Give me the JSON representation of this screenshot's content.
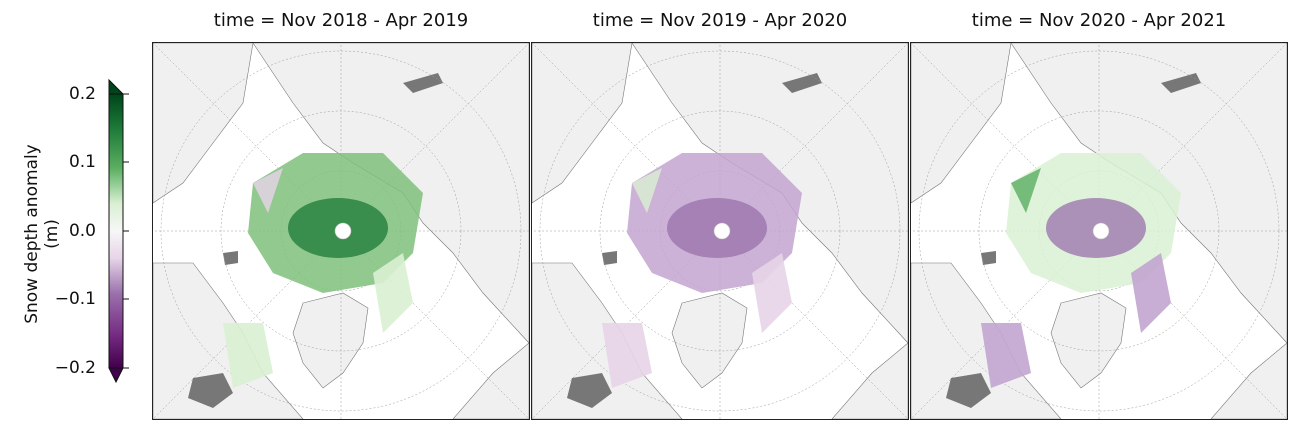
{
  "colorbar": {
    "label": "Snow depth anomaly (m)",
    "ticks": [
      "0.2",
      "0.1",
      "0.0",
      "−0.1",
      "−0.2"
    ],
    "min": -0.2,
    "max": 0.2,
    "extend": "both",
    "colormap": "PRGn",
    "colors": {
      "high": "#00441b",
      "mid": "#f7f7f7",
      "low": "#40004b"
    }
  },
  "panels": [
    {
      "title": "time = Nov 2018 - Apr 2019",
      "pattern": "positive"
    },
    {
      "title": "time = Nov 2019 - Apr 2020",
      "pattern": "negative"
    },
    {
      "title": "time = Nov 2020 - Apr 2021",
      "pattern": "mixed"
    }
  ],
  "map": {
    "projection": "north polar stereographic",
    "land_color": "#f0f0f0",
    "greenland_ice_color": "#777777",
    "gridlines": true
  }
}
